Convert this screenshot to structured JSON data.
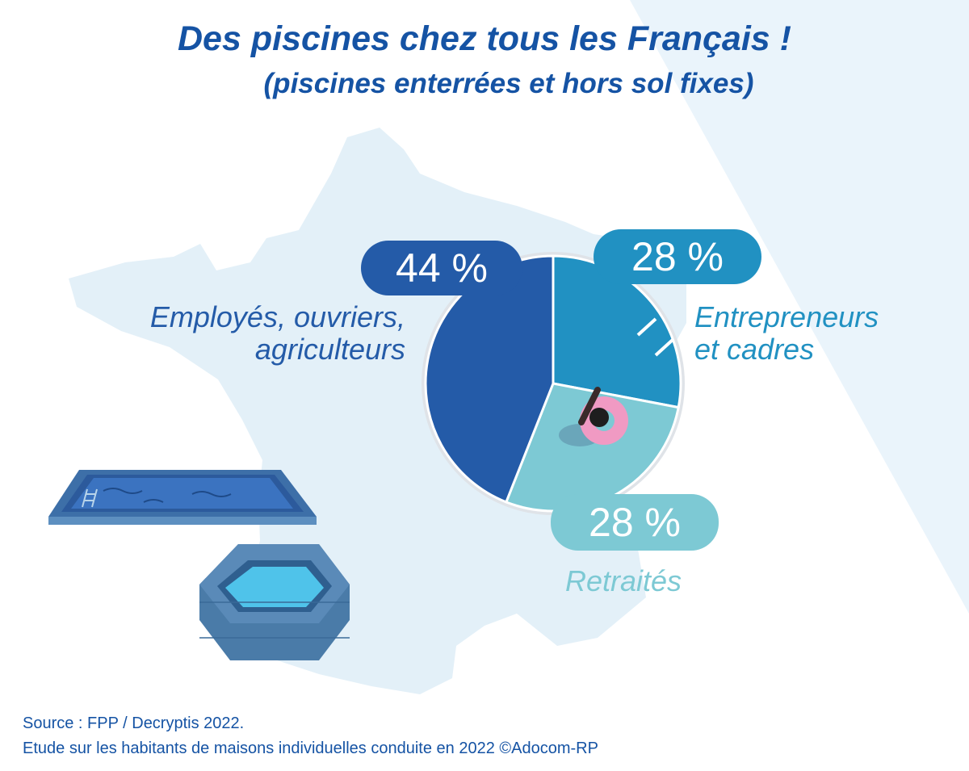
{
  "title": "Des piscines chez tous les Français !",
  "subtitle": "(piscines enterrées et hors sol fixes)",
  "source_line1": "Source : FPP / Decryptis 2022.",
  "source_line2": "Etude sur les habitants de maisons individuelles conduite en 2022 ©Adocom-RP",
  "colors": {
    "title": "#1553a4",
    "employes": "#245ba8",
    "entrepreneurs": "#2191c2",
    "retraites": "#7dc9d4",
    "map": "#e3f0f8",
    "band": "#eaf4fb"
  },
  "chart_data": {
    "type": "pie",
    "slices": [
      {
        "key": "employes",
        "label_lines": [
          "Employés, ouvriers,",
          "agriculteurs"
        ],
        "value": 44,
        "value_label": "44 %",
        "color": "#245ba8"
      },
      {
        "key": "entrepreneurs",
        "label_lines": [
          "Entrepreneurs",
          "et cadres"
        ],
        "value": 28,
        "value_label": "28 %",
        "color": "#2191c2"
      },
      {
        "key": "retraites",
        "label_lines": [
          "Retraités"
        ],
        "value": 28,
        "value_label": "28 %",
        "color": "#7dc9d4"
      }
    ]
  },
  "illustrations": [
    "france-map",
    "inground-pool-icon",
    "hexagonal-above-ground-pool-icon",
    "swimmer-on-float-icon"
  ]
}
